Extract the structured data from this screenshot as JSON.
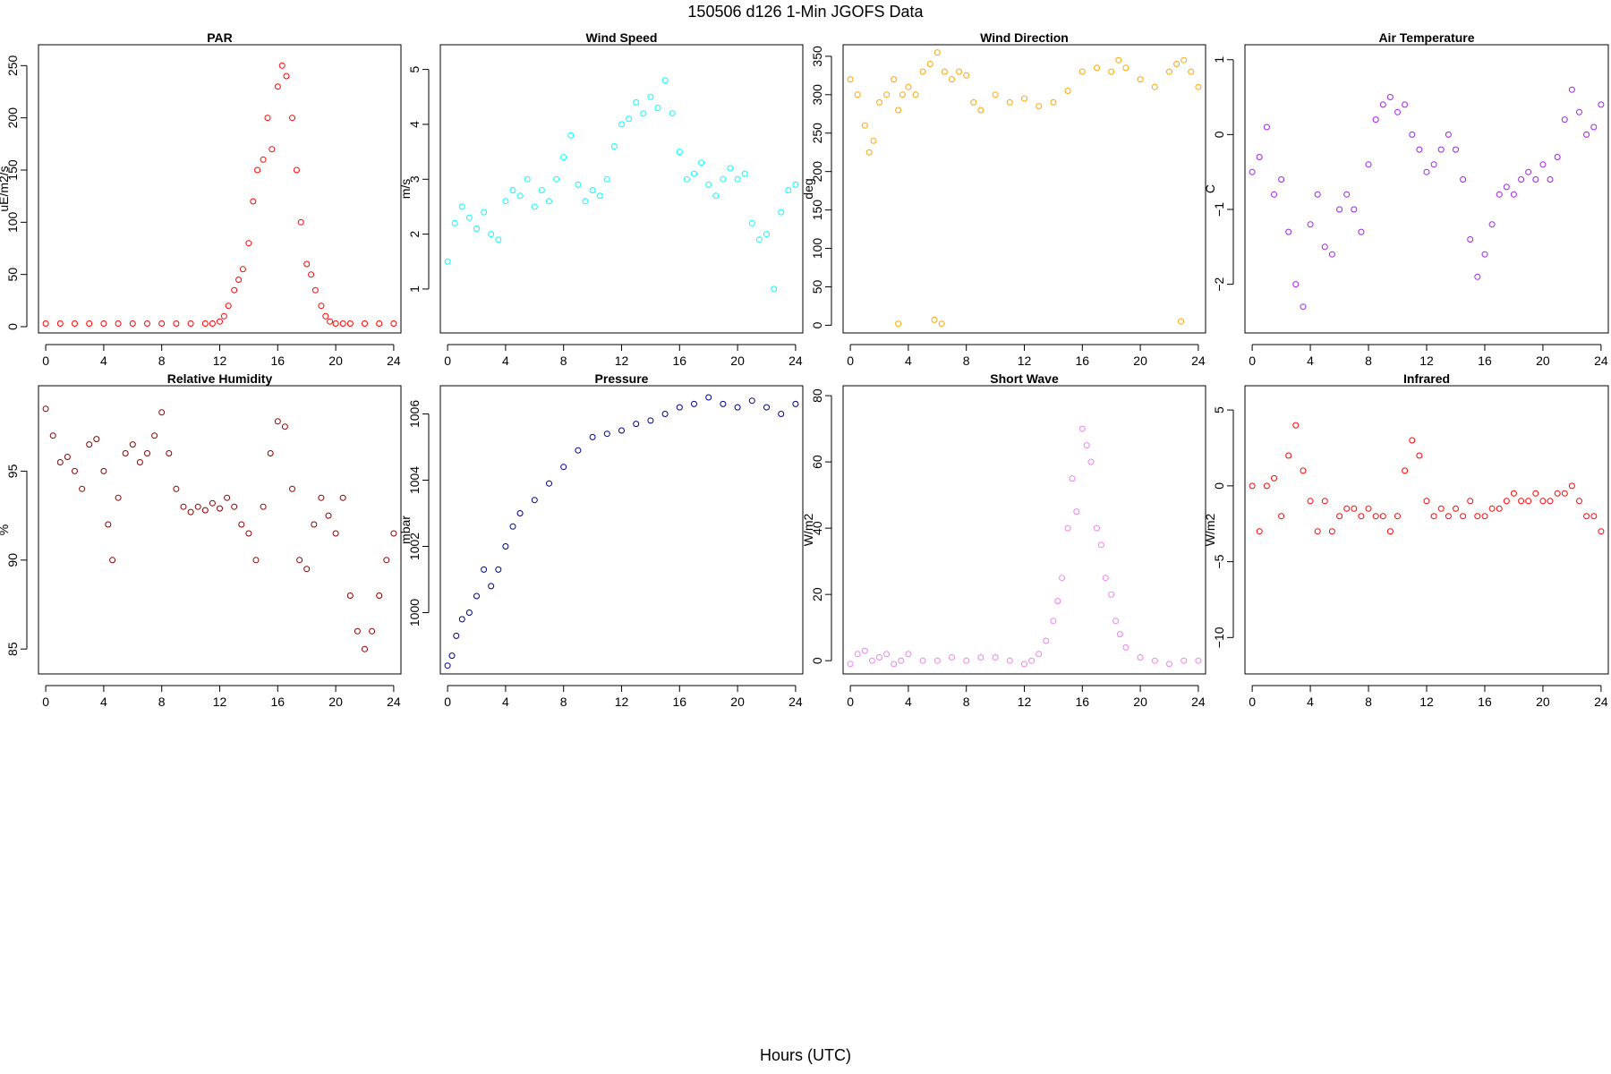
{
  "figure": {
    "title": "150506   d126   1-Min  JGOFS Data",
    "xlabel": "Hours (UTC)"
  },
  "chart_data": [
    {
      "type": "scatter",
      "title": "PAR",
      "ylabel": "uE/m2/s",
      "color": "#ff0000",
      "xlim": [
        -0.5,
        24.5
      ],
      "ylim": [
        -6,
        270
      ],
      "xticks": [
        0,
        4,
        8,
        12,
        16,
        20,
        24
      ],
      "yticks": [
        0,
        50,
        100,
        150,
        200,
        250
      ],
      "series": [
        {
          "x": [
            0,
            1,
            2,
            3,
            4,
            5,
            6,
            7,
            8,
            9,
            10,
            11,
            11.5,
            12,
            12.3,
            12.6,
            13,
            13.3,
            13.6,
            14,
            14.3,
            14.6,
            15,
            15.3,
            15.6,
            16,
            16.3,
            16.6,
            17,
            17.3,
            17.6,
            18,
            18.3,
            18.6,
            19,
            19.3,
            19.6,
            20,
            20.5,
            21,
            22,
            23,
            24
          ],
          "y": [
            3,
            3,
            3,
            3,
            3,
            3,
            3,
            3,
            3,
            3,
            3,
            3,
            3,
            5,
            10,
            20,
            35,
            45,
            55,
            80,
            120,
            150,
            160,
            200,
            170,
            230,
            250,
            240,
            200,
            150,
            100,
            60,
            50,
            35,
            20,
            10,
            5,
            3,
            3,
            3,
            3,
            3,
            3
          ]
        }
      ]
    },
    {
      "type": "scatter",
      "title": "Wind Speed",
      "ylabel": "m/s",
      "color": "#00ffff",
      "xlim": [
        -0.5,
        24.5
      ],
      "ylim": [
        0.2,
        5.45
      ],
      "xticks": [
        0,
        4,
        8,
        12,
        16,
        20,
        24
      ],
      "yticks": [
        1,
        2,
        3,
        4,
        5
      ],
      "series": [
        {
          "x": [
            0,
            0.5,
            1,
            1.5,
            2,
            2.5,
            3,
            3.5,
            4,
            4.5,
            5,
            5.5,
            6,
            6.5,
            7,
            7.5,
            8,
            8.5,
            9,
            9.5,
            10,
            10.5,
            11,
            11.5,
            12,
            12.5,
            13,
            13.5,
            14,
            14.5,
            15,
            15.5,
            16,
            16.5,
            17,
            17.5,
            18,
            18.5,
            19,
            19.5,
            20,
            20.5,
            21,
            21.5,
            22,
            22.5,
            23,
            23.5,
            24
          ],
          "y": [
            1.5,
            2.2,
            2.5,
            2.3,
            2.1,
            2.4,
            2.0,
            1.9,
            2.6,
            2.8,
            2.7,
            3.0,
            2.5,
            2.8,
            2.6,
            3.0,
            3.4,
            3.8,
            2.9,
            2.6,
            2.8,
            2.7,
            3.0,
            3.6,
            4.0,
            4.1,
            4.4,
            4.2,
            4.5,
            4.3,
            4.8,
            4.2,
            3.5,
            3.0,
            3.1,
            3.3,
            2.9,
            2.7,
            3.0,
            3.2,
            3.0,
            3.1,
            2.2,
            1.9,
            2.0,
            1.0,
            2.4,
            2.8,
            2.9
          ]
        }
      ]
    },
    {
      "type": "scatter",
      "title": "Wind Direction",
      "ylabel": "deg",
      "color": "#ffa500",
      "xlim": [
        -0.5,
        24.5
      ],
      "ylim": [
        -10,
        365
      ],
      "xticks": [
        0,
        4,
        8,
        12,
        16,
        20,
        24
      ],
      "yticks": [
        0,
        50,
        100,
        150,
        200,
        250,
        300,
        350
      ],
      "series": [
        {
          "x": [
            0,
            0.5,
            1,
            1.3,
            1.6,
            2,
            2.5,
            3,
            3.3,
            3.6,
            4,
            4.5,
            5,
            5.5,
            6,
            6.5,
            7,
            7.5,
            8,
            8.5,
            9,
            10,
            11,
            12,
            13,
            14,
            15,
            16,
            17,
            18,
            18.5,
            19,
            20,
            21,
            22,
            22.5,
            23,
            23.5,
            24,
            3.3,
            5.8,
            6.3,
            22.8
          ],
          "y": [
            320,
            300,
            260,
            225,
            240,
            290,
            300,
            320,
            280,
            300,
            310,
            300,
            330,
            340,
            355,
            330,
            320,
            330,
            325,
            290,
            280,
            300,
            290,
            295,
            285,
            290,
            305,
            330,
            335,
            330,
            345,
            335,
            320,
            310,
            330,
            340,
            345,
            330,
            310,
            2,
            7,
            2,
            5
          ]
        }
      ]
    },
    {
      "type": "scatter",
      "title": "Air Temperature",
      "ylabel": "C",
      "color": "#a020f0",
      "xlim": [
        -0.5,
        24.5
      ],
      "ylim": [
        -2.65,
        1.2
      ],
      "xticks": [
        0,
        4,
        8,
        12,
        16,
        20,
        24
      ],
      "yticks": [
        -2,
        -1,
        0,
        1
      ],
      "series": [
        {
          "x": [
            0,
            0.5,
            1,
            1.5,
            2,
            2.5,
            3,
            3.5,
            4,
            4.5,
            5,
            5.5,
            6,
            6.5,
            7,
            7.5,
            8,
            8.5,
            9,
            9.5,
            10,
            10.5,
            11,
            11.5,
            12,
            12.5,
            13,
            13.5,
            14,
            14.5,
            15,
            15.5,
            16,
            16.5,
            17,
            17.5,
            18,
            18.5,
            19,
            19.5,
            20,
            20.5,
            21,
            21.5,
            22,
            22.5,
            23,
            23.5,
            24
          ],
          "y": [
            -0.5,
            -0.3,
            0.1,
            -0.8,
            -0.6,
            -1.3,
            -2.0,
            -2.3,
            -1.2,
            -0.8,
            -1.5,
            -1.6,
            -1.0,
            -0.8,
            -1.0,
            -1.3,
            -0.4,
            0.2,
            0.4,
            0.5,
            0.3,
            0.4,
            0.0,
            -0.2,
            -0.5,
            -0.4,
            -0.2,
            0.0,
            -0.2,
            -0.6,
            -1.4,
            -1.9,
            -1.6,
            -1.2,
            -0.8,
            -0.7,
            -0.8,
            -0.6,
            -0.5,
            -0.6,
            -0.4,
            -0.6,
            -0.3,
            0.2,
            0.6,
            0.3,
            0.0,
            0.1,
            0.4
          ]
        }
      ]
    },
    {
      "type": "scatter",
      "title": "Relative Humidity",
      "ylabel": "%",
      "color": "#8b0000",
      "xlim": [
        -0.5,
        24.5
      ],
      "ylim": [
        83.6,
        99.8
      ],
      "xticks": [
        0,
        4,
        8,
        12,
        16,
        20,
        24
      ],
      "yticks": [
        85,
        90,
        95
      ],
      "series": [
        {
          "x": [
            0,
            0.5,
            1,
            1.5,
            2,
            2.5,
            3,
            3.5,
            4,
            4.3,
            4.6,
            5,
            5.5,
            6,
            6.5,
            7,
            7.5,
            8,
            8.5,
            9,
            9.5,
            10,
            10.5,
            11,
            11.5,
            12,
            12.5,
            13,
            13.5,
            14,
            14.5,
            15,
            15.5,
            16,
            16.5,
            17,
            17.5,
            18,
            18.5,
            19,
            19.5,
            20,
            20.5,
            21,
            21.5,
            22,
            22.5,
            23,
            23.5,
            24
          ],
          "y": [
            98.5,
            97,
            95.5,
            95.8,
            95,
            94,
            96.5,
            96.8,
            95,
            92,
            90,
            93.5,
            96,
            96.5,
            95.5,
            96,
            97,
            98.3,
            96,
            94,
            93,
            92.7,
            93,
            92.8,
            93.2,
            92.9,
            93.5,
            93,
            92,
            91.5,
            90,
            93,
            96,
            97.8,
            97.5,
            94,
            90,
            89.5,
            92,
            93.5,
            92.5,
            91.5,
            93.5,
            88,
            86,
            85,
            86,
            88,
            90,
            91.5
          ]
        }
      ]
    },
    {
      "type": "scatter",
      "title": "Pressure",
      "ylabel": "mbar",
      "color": "#00008b",
      "xlim": [
        -0.5,
        24.5
      ],
      "ylim": [
        998.15,
        1006.85
      ],
      "xticks": [
        0,
        4,
        8,
        12,
        16,
        20,
        24
      ],
      "yticks": [
        1000,
        1002,
        1004,
        1006
      ],
      "series": [
        {
          "x": [
            0,
            0.3,
            0.6,
            1,
            1.5,
            2,
            2.5,
            3,
            3.5,
            4,
            4.5,
            5,
            6,
            7,
            8,
            9,
            10,
            11,
            12,
            13,
            14,
            15,
            16,
            17,
            18,
            19,
            20,
            21,
            22,
            23,
            24
          ],
          "y": [
            998.4,
            998.7,
            999.3,
            999.8,
            1000.0,
            1000.5,
            1001.3,
            1000.8,
            1001.3,
            1002.0,
            1002.6,
            1003.0,
            1003.4,
            1003.9,
            1004.4,
            1004.9,
            1005.3,
            1005.4,
            1005.5,
            1005.7,
            1005.8,
            1006.0,
            1006.2,
            1006.3,
            1006.5,
            1006.3,
            1006.2,
            1006.4,
            1006.2,
            1006.0,
            1006.3
          ]
        }
      ]
    },
    {
      "type": "scatter",
      "title": "Short Wave",
      "ylabel": "W/m2",
      "color": "#ee82ee",
      "xlim": [
        -0.5,
        24.5
      ],
      "ylim": [
        -4,
        83
      ],
      "xticks": [
        0,
        4,
        8,
        12,
        16,
        20,
        24
      ],
      "yticks": [
        0,
        20,
        40,
        60,
        80
      ],
      "series": [
        {
          "x": [
            0,
            0.5,
            1,
            1.5,
            2,
            2.5,
            3,
            3.5,
            4,
            5,
            6,
            7,
            8,
            9,
            10,
            11,
            12,
            12.5,
            13,
            13.5,
            14,
            14.3,
            14.6,
            15,
            15.3,
            15.6,
            16,
            16.3,
            16.6,
            17,
            17.3,
            17.6,
            18,
            18.3,
            18.6,
            19,
            20,
            21,
            22,
            23,
            24
          ],
          "y": [
            -1,
            2,
            3,
            0,
            1,
            2,
            -1,
            0,
            2,
            0,
            0,
            1,
            0,
            1,
            1,
            0,
            -1,
            0,
            2,
            6,
            12,
            18,
            25,
            40,
            55,
            45,
            70,
            65,
            60,
            40,
            35,
            25,
            20,
            12,
            8,
            4,
            1,
            0,
            -1,
            0,
            0
          ]
        }
      ]
    },
    {
      "type": "scatter",
      "title": "Infrared",
      "ylabel": "W/m2",
      "color": "#ff0000",
      "xlim": [
        -0.5,
        24.5
      ],
      "ylim": [
        -12.4,
        6.6
      ],
      "xticks": [
        0,
        4,
        8,
        12,
        16,
        20,
        24
      ],
      "yticks": [
        -10,
        -5,
        0,
        5
      ],
      "series": [
        {
          "x": [
            0,
            0.5,
            1,
            1.5,
            2,
            2.5,
            3,
            3.5,
            4,
            4.5,
            5,
            5.5,
            6,
            6.5,
            7,
            7.5,
            8,
            8.5,
            9,
            9.5,
            10,
            10.5,
            11,
            11.5,
            12,
            12.5,
            13,
            13.5,
            14,
            14.5,
            15,
            15.5,
            16,
            16.5,
            17,
            17.5,
            18,
            18.5,
            19,
            19.5,
            20,
            20.5,
            21,
            21.5,
            22,
            22.5,
            23,
            23.5,
            24
          ],
          "y": [
            0,
            -3,
            0,
            0.5,
            -2,
            2,
            4,
            1,
            -1,
            -3,
            -1,
            -3,
            -2,
            -1.5,
            -1.5,
            -2,
            -1.5,
            -2,
            -2,
            -3,
            -2,
            1,
            3,
            2,
            -1,
            -2,
            -1.5,
            -2,
            -1.5,
            -2,
            -1,
            -2,
            -2,
            -1.5,
            -1.5,
            -1,
            -0.5,
            -1,
            -1,
            -0.5,
            -1,
            -1,
            -0.5,
            -0.5,
            0,
            -1,
            -2,
            -2,
            -3
          ]
        }
      ]
    }
  ]
}
